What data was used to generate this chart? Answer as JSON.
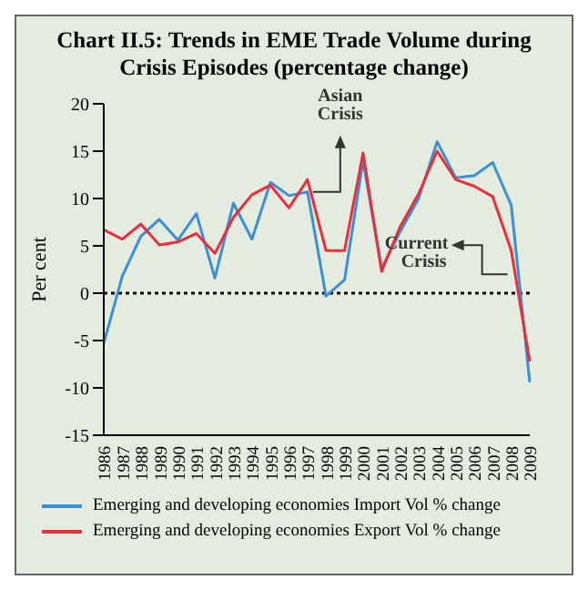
{
  "chart_data": {
    "type": "line",
    "title": "Chart II.5: Trends in EME Trade Volume during Crisis Episodes (percentage change)",
    "ylabel": "Per cent",
    "categories": [
      "1986",
      "1987",
      "1988",
      "1989",
      "1990",
      "1991",
      "1992",
      "1993",
      "1994",
      "1995",
      "1996",
      "1997",
      "1998",
      "1999",
      "2000",
      "2001",
      "2002",
      "2003",
      "2004",
      "2005",
      "2006",
      "2007",
      "2008",
      "2009"
    ],
    "series": [
      {
        "name": "Emerging and developing economies Import Vol % change",
        "color": "#3a8fd6",
        "values": [
          -5.3,
          1.8,
          6,
          7.8,
          5.6,
          8.4,
          1.6,
          9.5,
          5.7,
          11.7,
          10.3,
          10.7,
          -0.3,
          1.4,
          14,
          2.6,
          6.5,
          10,
          16,
          12.2,
          12.4,
          13.8,
          9.3,
          -9.4
        ]
      },
      {
        "name": "Emerging and developing economies Export Vol % change",
        "color": "#ec2d3a",
        "values": [
          6.7,
          5.7,
          7.3,
          5.1,
          5.4,
          6.3,
          4.2,
          8,
          10.4,
          11.4,
          9,
          12,
          4.5,
          4.5,
          14.8,
          2.3,
          7,
          10.5,
          15,
          12,
          11.3,
          10.2,
          4.5,
          -7.2
        ]
      }
    ],
    "ylim": [
      -15,
      20
    ],
    "yticks": [
      -15,
      -10,
      -5,
      0,
      5,
      10,
      15,
      20
    ],
    "grid": false,
    "legend": "bottom",
    "marker": "none",
    "line_style": "solid",
    "ref_lines": [
      {
        "axis": "y",
        "value": 0,
        "color": "#000000",
        "line_style": "dotted"
      }
    ],
    "annotations": [
      {
        "text": "Asian Crisis",
        "x": "1997",
        "y": 10.7
      },
      {
        "text": "Current Crisis",
        "x": "2008",
        "y": 2
      }
    ]
  }
}
